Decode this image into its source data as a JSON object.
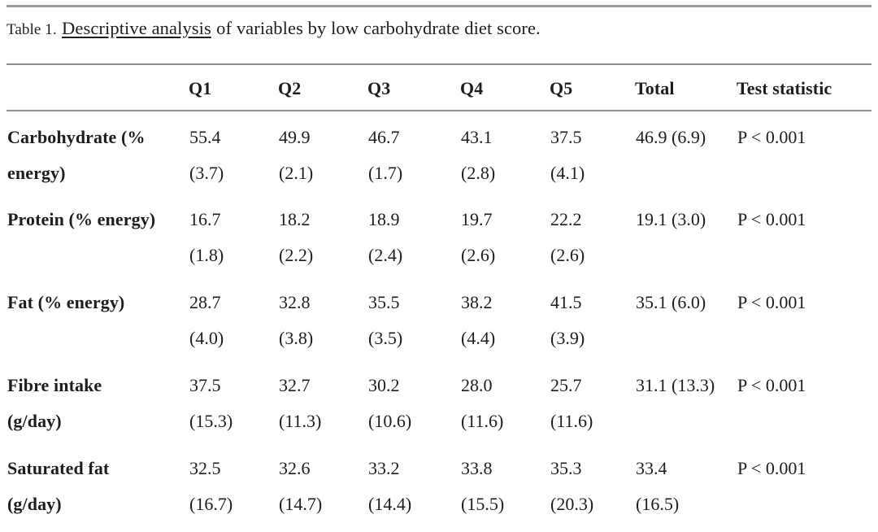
{
  "caption": {
    "label": "Table 1.",
    "underlined": "Descriptive analysis",
    "rest": "of variables by low carbohydrate diet score."
  },
  "table": {
    "columns": [
      "",
      "Q1",
      "Q2",
      "Q3",
      "Q4",
      "Q5",
      "Total",
      "Test statistic"
    ],
    "rows": [
      {
        "label": [
          "Carbohydrate (%",
          "energy)"
        ],
        "quartiles": [
          [
            "55.4",
            "(3.7)"
          ],
          [
            "49.9",
            "(2.1)"
          ],
          [
            "46.7",
            "(1.7)"
          ],
          [
            "43.1",
            "(2.8)"
          ],
          [
            "37.5",
            "(4.1)"
          ]
        ],
        "total": [
          "46.9 (6.9)"
        ],
        "test": "P < 0.001"
      },
      {
        "label": [
          "Protein (% energy)"
        ],
        "quartiles": [
          [
            "16.7",
            "(1.8)"
          ],
          [
            "18.2",
            "(2.2)"
          ],
          [
            "18.9",
            "(2.4)"
          ],
          [
            "19.7",
            "(2.6)"
          ],
          [
            "22.2",
            "(2.6)"
          ]
        ],
        "total": [
          "19.1 (3.0)"
        ],
        "test": "P < 0.001"
      },
      {
        "label": [
          "Fat (% energy)"
        ],
        "quartiles": [
          [
            "28.7",
            "(4.0)"
          ],
          [
            "32.8",
            "(3.8)"
          ],
          [
            "35.5",
            "(3.5)"
          ],
          [
            "38.2",
            "(4.4)"
          ],
          [
            "41.5",
            "(3.9)"
          ]
        ],
        "total": [
          "35.1 (6.0)"
        ],
        "test": "P < 0.001"
      },
      {
        "label": [
          "Fibre intake",
          "(g/day)"
        ],
        "quartiles": [
          [
            "37.5",
            "(15.3)"
          ],
          [
            "32.7",
            "(11.3)"
          ],
          [
            "30.2",
            "(10.6)"
          ],
          [
            "28.0",
            "(11.6)"
          ],
          [
            "25.7",
            "(11.6)"
          ]
        ],
        "total": [
          "31.1 (13.3)"
        ],
        "test": "P < 0.001"
      },
      {
        "label": [
          "Saturated fat",
          "(g/day)"
        ],
        "quartiles": [
          [
            "32.5",
            "(16.7)"
          ],
          [
            "32.6",
            "(14.7)"
          ],
          [
            "33.2",
            "(14.4)"
          ],
          [
            "33.8",
            "(15.5)"
          ],
          [
            "35.3",
            "(20.3)"
          ]
        ],
        "total": [
          "33.4",
          "(16.5)"
        ],
        "test": "P < 0.001"
      }
    ]
  },
  "colors": {
    "text": "#1d1d1d",
    "rule_thick": "#9b9b9b",
    "rule_thin": "#8e8e8e",
    "background": "#ffffff"
  }
}
